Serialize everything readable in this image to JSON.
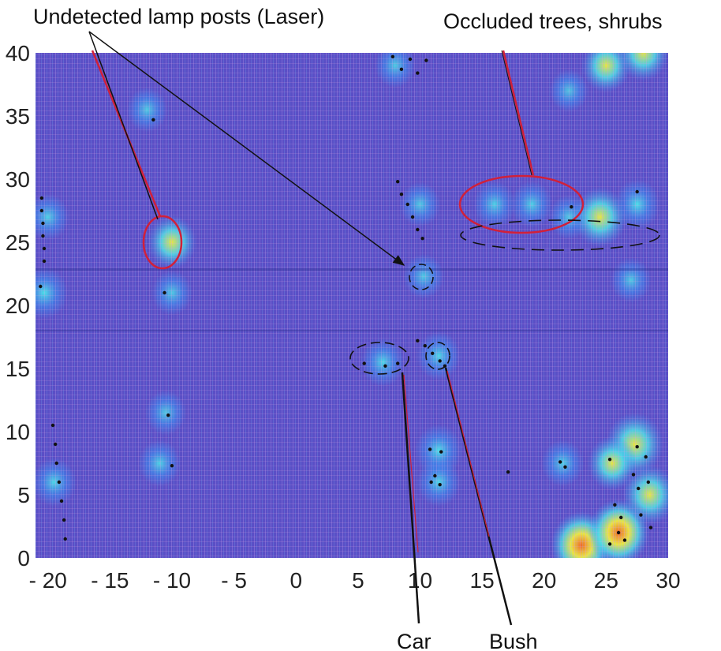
{
  "chart_data": {
    "type": "heatmap",
    "title": "",
    "xlabel": "",
    "ylabel": "",
    "xlim": [
      -21,
      30
    ],
    "ylim": [
      0,
      40
    ],
    "x_ticks": [
      -20,
      -15,
      -10,
      -5,
      0,
      5,
      10,
      15,
      20,
      25,
      30
    ],
    "x_tick_labels": [
      "- 20",
      "- 15",
      "- 10",
      "- 5",
      "0",
      "5",
      "10",
      "15",
      "20",
      "25",
      "30"
    ],
    "y_ticks": [
      0,
      5,
      10,
      15,
      20,
      25,
      30,
      35,
      40
    ],
    "y_tick_labels": [
      "0",
      "5",
      "10",
      "15",
      "20",
      "25",
      "30",
      "35",
      "40"
    ],
    "grid": false,
    "colors": {
      "background": "#5a4fc6",
      "low": "#3d8bf0",
      "mid": "#4ee0e6",
      "high": "#f2ec3c",
      "peak": "#f06a28",
      "points": "#111111",
      "annotation_red": "#d0203a"
    },
    "hotspots": [
      {
        "x": -10,
        "y": 25,
        "level": 0.6
      },
      {
        "x": -10,
        "y": 21,
        "level": 0.35
      },
      {
        "x": -12,
        "y": 35.5,
        "level": 0.35
      },
      {
        "x": -11,
        "y": 7.5,
        "level": 0.4
      },
      {
        "x": -10.5,
        "y": 11.5,
        "level": 0.35
      },
      {
        "x": -20.3,
        "y": 21,
        "level": 0.55
      },
      {
        "x": -20,
        "y": 27,
        "level": 0.4
      },
      {
        "x": -19.5,
        "y": 6,
        "level": 0.45
      },
      {
        "x": 10.3,
        "y": 22.3,
        "level": 0.35
      },
      {
        "x": 7,
        "y": 15.5,
        "level": 0.45
      },
      {
        "x": 11.5,
        "y": 16,
        "level": 0.45
      },
      {
        "x": 10,
        "y": 28,
        "level": 0.35
      },
      {
        "x": 16,
        "y": 28,
        "level": 0.4
      },
      {
        "x": 19,
        "y": 28,
        "level": 0.4
      },
      {
        "x": 22,
        "y": 27,
        "level": 0.35
      },
      {
        "x": 24.5,
        "y": 27,
        "level": 0.75
      },
      {
        "x": 27.5,
        "y": 28,
        "level": 0.5
      },
      {
        "x": 11.5,
        "y": 8.5,
        "level": 0.55
      },
      {
        "x": 11.5,
        "y": 6,
        "level": 0.45
      },
      {
        "x": 21.5,
        "y": 7.5,
        "level": 0.4
      },
      {
        "x": 23,
        "y": 1,
        "level": 0.95
      },
      {
        "x": 26,
        "y": 2,
        "level": 0.95
      },
      {
        "x": 27.3,
        "y": 9,
        "level": 0.85
      },
      {
        "x": 28.5,
        "y": 5,
        "level": 0.75
      },
      {
        "x": 25.5,
        "y": 7.5,
        "level": 0.6
      },
      {
        "x": 25,
        "y": 39,
        "level": 0.6
      },
      {
        "x": 28,
        "y": 40,
        "level": 0.65
      },
      {
        "x": 8,
        "y": 39,
        "level": 0.35
      },
      {
        "x": 22,
        "y": 37,
        "level": 0.3
      },
      {
        "x": 27,
        "y": 22,
        "level": 0.35
      }
    ],
    "points": [
      [
        -20.5,
        28.5
      ],
      [
        -20.5,
        27.5
      ],
      [
        -20.4,
        26.5
      ],
      [
        -20.4,
        25.5
      ],
      [
        -20.3,
        24.5
      ],
      [
        -20.3,
        23.5
      ],
      [
        -20.6,
        21.5
      ],
      [
        -19.6,
        10.5
      ],
      [
        -19.4,
        9
      ],
      [
        -19.3,
        7.5
      ],
      [
        -19.1,
        6
      ],
      [
        -18.9,
        4.5
      ],
      [
        -18.7,
        3
      ],
      [
        -18.6,
        1.5
      ],
      [
        -11.5,
        34.7
      ],
      [
        -10.6,
        21
      ],
      [
        -10.3,
        11.3
      ],
      [
        -10.0,
        7.3
      ],
      [
        7.8,
        39.7
      ],
      [
        9.2,
        39.5
      ],
      [
        10.5,
        39.4
      ],
      [
        9.8,
        38.4
      ],
      [
        8.5,
        38.7
      ],
      [
        8.2,
        29.8
      ],
      [
        8.5,
        28.8
      ],
      [
        9.0,
        28.0
      ],
      [
        9.4,
        27.0
      ],
      [
        9.8,
        26.0
      ],
      [
        10.2,
        25.3
      ],
      [
        5.5,
        15.4
      ],
      [
        7.2,
        15.2
      ],
      [
        8.2,
        15.4
      ],
      [
        9.8,
        17.2
      ],
      [
        10.4,
        16.8
      ],
      [
        11.0,
        16.2
      ],
      [
        11.6,
        15.6
      ],
      [
        12.0,
        15.2
      ],
      [
        10.8,
        8.6
      ],
      [
        11.7,
        8.4
      ],
      [
        11.2,
        6.5
      ],
      [
        10.9,
        6.0
      ],
      [
        11.6,
        5.8
      ],
      [
        17.1,
        6.8
      ],
      [
        21.3,
        7.6
      ],
      [
        21.7,
        7.2
      ],
      [
        25.3,
        7.8
      ],
      [
        27.5,
        8.8
      ],
      [
        28.2,
        8.0
      ],
      [
        27.2,
        6.6
      ],
      [
        28.4,
        6.0
      ],
      [
        27.6,
        5.5
      ],
      [
        25.7,
        4.2
      ],
      [
        26.2,
        3.2
      ],
      [
        26.0,
        2.0
      ],
      [
        26.5,
        1.4
      ],
      [
        27.8,
        3.4
      ],
      [
        28.6,
        2.4
      ],
      [
        25.3,
        1.1
      ],
      [
        22.2,
        27.8
      ],
      [
        27.5,
        29.0
      ]
    ],
    "annotations": [
      {
        "label": "Undetected lamp posts (Laser)",
        "lines": "black"
      },
      {
        "label": "Occluded trees, shrubs",
        "lines": "red"
      },
      {
        "label": "Car",
        "lines": "black"
      },
      {
        "label": "Bush",
        "lines": "black"
      }
    ]
  }
}
